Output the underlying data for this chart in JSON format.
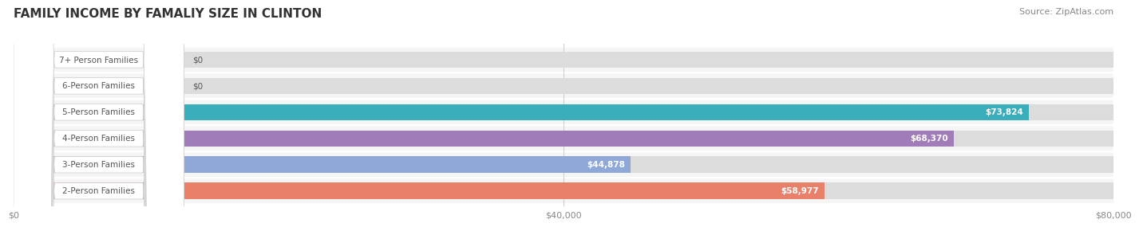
{
  "title": "FAMILY INCOME BY FAMALIY SIZE IN CLINTON",
  "source": "Source: ZipAtlas.com",
  "categories": [
    "2-Person Families",
    "3-Person Families",
    "4-Person Families",
    "5-Person Families",
    "6-Person Families",
    "7+ Person Families"
  ],
  "values": [
    58977,
    44878,
    68370,
    73824,
    0,
    0
  ],
  "bar_colors": [
    "#E8806A",
    "#8FA8D8",
    "#A07DB8",
    "#3BAEBC",
    "#9999CC",
    "#E8A0B0"
  ],
  "bar_bg_color": "#E8E8E8",
  "label_bg_color": "#F0F0F0",
  "value_labels": [
    "$58,977",
    "$44,878",
    "$68,370",
    "$73,824",
    "$0",
    "$0"
  ],
  "xmax": 80000,
  "xticks": [
    0,
    40000,
    80000
  ],
  "xticklabels": [
    "$0",
    "$40,000",
    "$80,000"
  ],
  "background_color": "#FFFFFF",
  "title_fontsize": 11,
  "source_fontsize": 8,
  "bar_label_fontsize": 7.5,
  "value_fontsize": 7.5,
  "bar_height": 0.62,
  "row_bg_color": "#F5F5F5"
}
